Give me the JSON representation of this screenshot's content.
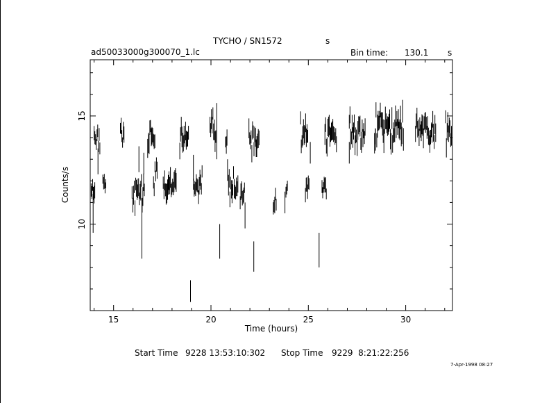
{
  "header": {
    "title": "TYCHO / SN1572",
    "title_unit": "s",
    "file_name": "ad50033000g300070_1.lc",
    "bin_label": "Bin time:",
    "bin_value": "130.1",
    "bin_unit": "s"
  },
  "footer": {
    "start_label": "Start Time",
    "start_value": "9228 13:53:10:302",
    "stop_label": "Stop Time",
    "stop_value": "9229  8:21:22:256",
    "timestamp": "7-Apr-1998 08:27"
  },
  "chart_data": {
    "type": "scatter",
    "title": "TYCHO / SN1572",
    "xlabel": "Time (hours)",
    "ylabel": "Counts/s",
    "xlim": [
      13.8,
      32.4
    ],
    "ylim": [
      6.0,
      17.6
    ],
    "x_ticks": [
      15,
      20,
      25,
      30
    ],
    "y_ticks": [
      10,
      15
    ],
    "grid": false,
    "segments": [
      {
        "start": 14.0,
        "end": 14.3,
        "mean": 13.9,
        "err": 0.3
      },
      {
        "start": 15.35,
        "end": 15.55,
        "mean": 14.1,
        "err": 0.3
      },
      {
        "start": 16.75,
        "end": 17.15,
        "mean": 14.0,
        "err": 0.35
      },
      {
        "start": 18.4,
        "end": 18.85,
        "mean": 14.1,
        "err": 0.35
      },
      {
        "start": 19.95,
        "end": 20.25,
        "mean": 14.3,
        "err": 0.35
      },
      {
        "start": 20.75,
        "end": 20.85,
        "mean": 13.8,
        "err": 0.3
      },
      {
        "start": 21.95,
        "end": 22.5,
        "mean": 13.8,
        "err": 0.35
      },
      {
        "start": 24.6,
        "end": 25.0,
        "mean": 14.2,
        "err": 0.35
      },
      {
        "start": 25.85,
        "end": 26.45,
        "mean": 14.2,
        "err": 0.35
      },
      {
        "start": 27.1,
        "end": 27.95,
        "mean": 14.3,
        "err": 0.35
      },
      {
        "start": 28.4,
        "end": 29.9,
        "mean": 14.4,
        "err": 0.4
      },
      {
        "start": 30.5,
        "end": 31.55,
        "mean": 14.4,
        "err": 0.35
      },
      {
        "start": 32.05,
        "end": 32.35,
        "mean": 14.3,
        "err": 0.35
      },
      {
        "start": 13.85,
        "end": 14.05,
        "mean": 11.7,
        "err": 0.3
      },
      {
        "start": 14.45,
        "end": 14.6,
        "mean": 11.9,
        "err": 0.25
      },
      {
        "start": 15.95,
        "end": 16.6,
        "mean": 11.5,
        "err": 0.35
      },
      {
        "start": 17.05,
        "end": 17.25,
        "mean": 12.3,
        "err": 0.3
      },
      {
        "start": 17.55,
        "end": 18.25,
        "mean": 11.6,
        "err": 0.35
      },
      {
        "start": 19.1,
        "end": 19.55,
        "mean": 11.8,
        "err": 0.3
      },
      {
        "start": 20.9,
        "end": 21.4,
        "mean": 11.7,
        "err": 0.35
      },
      {
        "start": 21.5,
        "end": 21.75,
        "mean": 11.3,
        "err": 0.3
      },
      {
        "start": 23.2,
        "end": 23.35,
        "mean": 11.2,
        "err": 0.3
      },
      {
        "start": 23.85,
        "end": 23.95,
        "mean": 11.6,
        "err": 0.25
      },
      {
        "start": 24.85,
        "end": 25.05,
        "mean": 11.8,
        "err": 0.25
      },
      {
        "start": 25.7,
        "end": 25.95,
        "mean": 11.8,
        "err": 0.3
      }
    ],
    "outliers": [
      {
        "x": 13.95,
        "y": 10.5,
        "err": 0.9
      },
      {
        "x": 14.2,
        "y": 12.9,
        "err": 0.6
      },
      {
        "x": 16.3,
        "y": 13.0,
        "err": 0.6
      },
      {
        "x": 16.45,
        "y": 9.8,
        "err": 1.4
      },
      {
        "x": 16.55,
        "y": 12.8,
        "err": 0.5
      },
      {
        "x": 18.95,
        "y": 6.9,
        "err": 0.5
      },
      {
        "x": 19.1,
        "y": 12.6,
        "err": 0.6
      },
      {
        "x": 20.3,
        "y": 14.3,
        "err": 1.3
      },
      {
        "x": 20.45,
        "y": 9.2,
        "err": 0.8
      },
      {
        "x": 20.85,
        "y": 12.5,
        "err": 0.5
      },
      {
        "x": 21.75,
        "y": 10.4,
        "err": 0.6
      },
      {
        "x": 22.2,
        "y": 8.5,
        "err": 0.7
      },
      {
        "x": 22.35,
        "y": 13.5,
        "err": 0.4
      },
      {
        "x": 23.8,
        "y": 11.0,
        "err": 0.5
      },
      {
        "x": 25.1,
        "y": 13.3,
        "err": 0.5
      },
      {
        "x": 25.55,
        "y": 8.8,
        "err": 0.8
      },
      {
        "x": 27.1,
        "y": 13.3,
        "err": 0.5
      },
      {
        "x": 28.45,
        "y": 13.9,
        "err": 0.5
      }
    ]
  }
}
